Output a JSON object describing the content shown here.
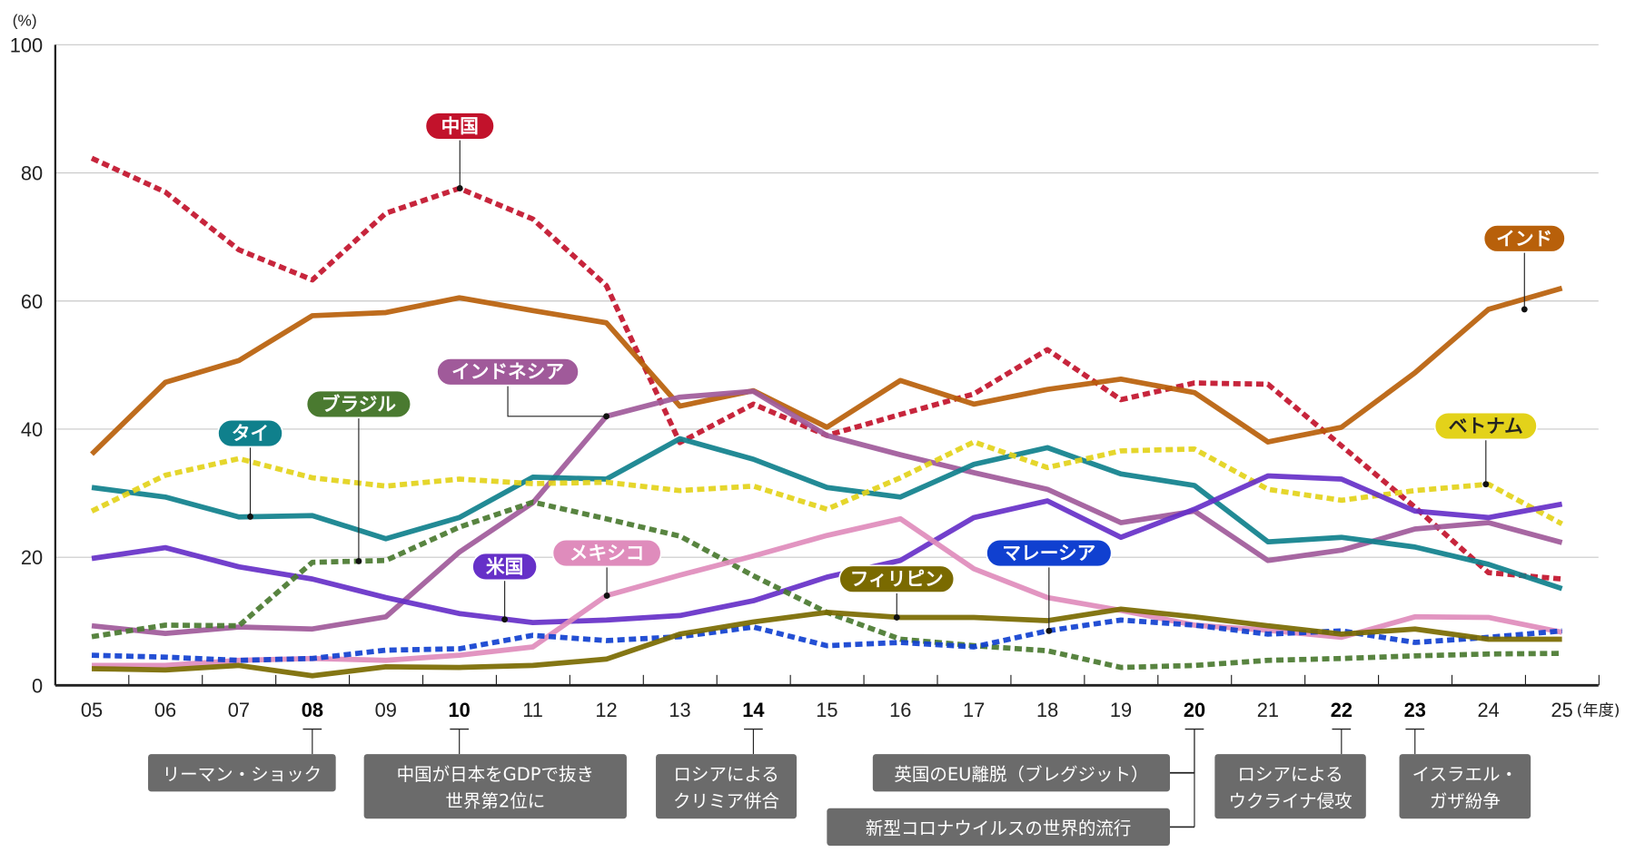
{
  "chart_data": {
    "type": "line",
    "ylabel": "(%)",
    "xunit": "(年度)",
    "ylim": [
      0,
      100
    ],
    "yticks": [
      0,
      20,
      40,
      60,
      80,
      100
    ],
    "grid": true,
    "categories": [
      "05",
      "06",
      "07",
      "08",
      "09",
      "10",
      "11",
      "12",
      "13",
      "14",
      "15",
      "16",
      "17",
      "18",
      "19",
      "20",
      "21",
      "22",
      "23",
      "24",
      "25"
    ],
    "bold_categories": [
      "08",
      "10",
      "14",
      "20",
      "22",
      "23"
    ],
    "series": [
      {
        "name": "中国",
        "color": "#c2122b",
        "dashed": true,
        "values": [
          82.3,
          77,
          68,
          63.3,
          73.7,
          77.6,
          72.8,
          62.4,
          37.9,
          43.9,
          39,
          42.3,
          45.5,
          52.4,
          44.6,
          47.2,
          47,
          37.4,
          27.8,
          17.6,
          16.6
        ]
      },
      {
        "name": "インド",
        "color": "#b8600a",
        "dashed": false,
        "values": [
          36.1,
          47.3,
          50.7,
          57.7,
          58.2,
          60.5,
          58.5,
          56.6,
          43.6,
          46,
          40.3,
          47.6,
          43.9,
          46.2,
          47.8,
          45.7,
          38,
          40.3,
          48.8,
          58.7,
          62
        ]
      },
      {
        "name": "インドネシア",
        "color": "#a05a9a",
        "dashed": false,
        "values": [
          9.3,
          8.1,
          9.1,
          8.8,
          10.7,
          20.8,
          28.5,
          42,
          45,
          45.9,
          39,
          36,
          33.2,
          30.6,
          25.4,
          27.2,
          19.5,
          21.1,
          24.4,
          25.4,
          22.3
        ]
      },
      {
        "name": "タイ",
        "color": "#0f808c",
        "dashed": false,
        "values": [
          30.9,
          29.4,
          26.3,
          26.5,
          22.9,
          26.2,
          32.5,
          32.2,
          38.5,
          35.3,
          30.9,
          29.4,
          34.5,
          37.1,
          33,
          31.2,
          22.4,
          23.1,
          21.6,
          18.9,
          15.1
        ]
      },
      {
        "name": "ベトナム",
        "color": "#e3d21a",
        "dashed": true,
        "values": [
          27.2,
          32.8,
          35.4,
          32.4,
          31.1,
          32.2,
          31.5,
          31.7,
          30.4,
          31.1,
          27.5,
          32.4,
          38,
          34,
          36.6,
          36.9,
          30.6,
          28.9,
          30.4,
          31.4,
          25.2
        ]
      },
      {
        "name": "米国",
        "color": "#6630c8",
        "dashed": false,
        "values": [
          19.8,
          21.5,
          18.5,
          16.6,
          13.7,
          11.2,
          9.8,
          10.2,
          10.9,
          13.2,
          16.9,
          19.5,
          26.2,
          28.8,
          23.1,
          27.5,
          32.7,
          32.2,
          27.2,
          26.2,
          28.3
        ]
      },
      {
        "name": "ブラジル",
        "color": "#4a7a30",
        "dashed": true,
        "values": [
          7.6,
          9.4,
          9.3,
          19.2,
          19.5,
          24.7,
          28.6,
          26,
          23.3,
          17.1,
          11.4,
          7.2,
          6.2,
          5.4,
          2.8,
          3.1,
          3.9,
          4.2,
          4.6,
          4.9,
          5
        ]
      },
      {
        "name": "メキシコ",
        "color": "#df8cbc",
        "dashed": false,
        "values": [
          3.1,
          3.1,
          3.9,
          4.2,
          3.9,
          4.7,
          6,
          14,
          17.2,
          20.2,
          23.4,
          26,
          18.2,
          13.7,
          11.7,
          9.4,
          8.6,
          7.5,
          10.7,
          10.6,
          8.3
        ]
      },
      {
        "name": "マレーシア",
        "color": "#1040d0",
        "dashed": true,
        "values": [
          4.7,
          4.4,
          3.9,
          4.2,
          5.5,
          5.7,
          7.8,
          7,
          7.6,
          9.1,
          6.2,
          6.7,
          6,
          8.5,
          10.2,
          9.4,
          8,
          8.5,
          6.7,
          7.5,
          8.5
        ]
      },
      {
        "name": "フィリピン",
        "color": "#7a6a00",
        "dashed": false,
        "values": [
          2.6,
          2.4,
          3.1,
          1.5,
          2.9,
          2.8,
          3.1,
          4.1,
          8,
          9.9,
          11.4,
          10.6,
          10.6,
          10.1,
          11.9,
          10.7,
          9.3,
          8,
          8.8,
          7.2,
          7.2
        ]
      }
    ],
    "annotations": [
      {
        "year": "08",
        "text": [
          "リーマン・ショック"
        ]
      },
      {
        "year": "10",
        "text": [
          "中国が日本をGDPで抜き",
          "世界第2位に"
        ]
      },
      {
        "year": "14",
        "text": [
          "ロシアによる",
          "クリミア併合"
        ]
      },
      {
        "year": "20",
        "text": [
          "英国のEU離脱（ブレグジット）"
        ]
      },
      {
        "year": "20",
        "text": [
          "新型コロナウイルスの世界的流行"
        ]
      },
      {
        "year": "22",
        "text": [
          "ロシアによる",
          "ウクライナ侵攻"
        ]
      },
      {
        "year": "23",
        "text": [
          "イスラエル・",
          "ガザ紛争"
        ]
      }
    ]
  }
}
